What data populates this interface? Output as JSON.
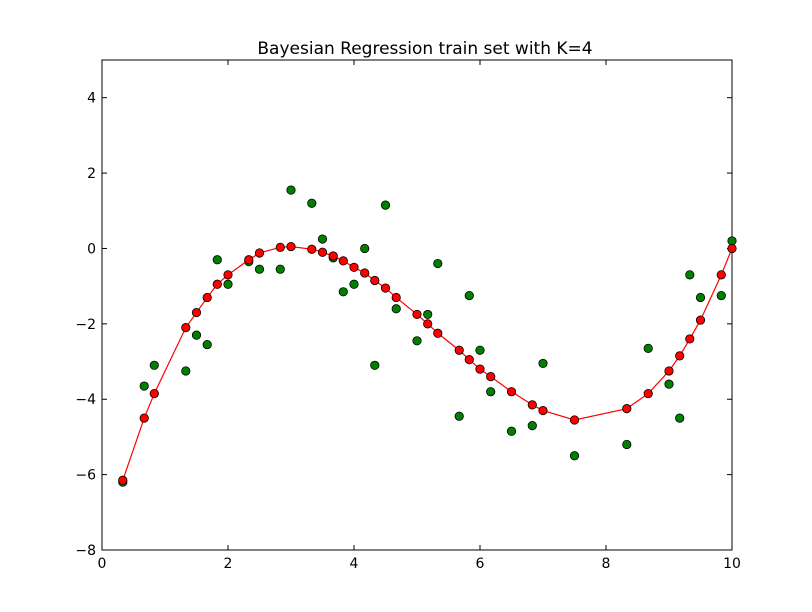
{
  "chart_data": {
    "type": "scatter",
    "title": "Bayesian Regression train set with K=4",
    "xlabel": "",
    "ylabel": "",
    "xlim": [
      0,
      10
    ],
    "ylim": [
      -8,
      5
    ],
    "x_ticks": [
      "0",
      "2",
      "4",
      "6",
      "8",
      "10"
    ],
    "y_ticks": [
      "−8",
      "−6",
      "−4",
      "−2",
      "0",
      "2",
      "4"
    ],
    "grid": false,
    "legend": "none",
    "series": [
      {
        "kind": "points",
        "color": "#008000",
        "points": [
          [
            0.33,
            -6.2
          ],
          [
            0.67,
            -3.65
          ],
          [
            0.83,
            -3.1
          ],
          [
            1.33,
            -3.25
          ],
          [
            1.5,
            -2.3
          ],
          [
            1.67,
            -2.55
          ],
          [
            1.83,
            -0.3
          ],
          [
            2.0,
            -0.95
          ],
          [
            2.33,
            -0.35
          ],
          [
            2.5,
            -0.55
          ],
          [
            2.83,
            -0.55
          ],
          [
            3.0,
            1.55
          ],
          [
            3.33,
            1.2
          ],
          [
            3.5,
            0.25
          ],
          [
            3.67,
            -0.25
          ],
          [
            3.83,
            -1.15
          ],
          [
            4.0,
            -0.95
          ],
          [
            4.17,
            0.0
          ],
          [
            4.33,
            -3.1
          ],
          [
            4.5,
            1.15
          ],
          [
            4.67,
            -1.6
          ],
          [
            5.0,
            -2.45
          ],
          [
            5.17,
            -1.75
          ],
          [
            5.33,
            -0.4
          ],
          [
            5.67,
            -4.45
          ],
          [
            5.83,
            -1.25
          ],
          [
            6.0,
            -2.7
          ],
          [
            6.17,
            -3.8
          ],
          [
            6.5,
            -4.85
          ],
          [
            6.83,
            -4.7
          ],
          [
            7.0,
            -3.05
          ],
          [
            7.5,
            -5.5
          ],
          [
            8.33,
            -5.2
          ],
          [
            8.67,
            -2.65
          ],
          [
            9.0,
            -3.6
          ],
          [
            9.17,
            -4.5
          ],
          [
            9.33,
            -0.7
          ],
          [
            9.5,
            -1.3
          ],
          [
            9.83,
            -1.25
          ],
          [
            10.0,
            0.2
          ]
        ]
      },
      {
        "kind": "line-with-points",
        "color": "#ff0000",
        "points": [
          [
            0.33,
            -6.15
          ],
          [
            0.67,
            -4.5
          ],
          [
            0.83,
            -3.85
          ],
          [
            1.33,
            -2.1
          ],
          [
            1.5,
            -1.7
          ],
          [
            1.67,
            -1.3
          ],
          [
            1.83,
            -0.95
          ],
          [
            2.0,
            -0.7
          ],
          [
            2.33,
            -0.3
          ],
          [
            2.5,
            -0.12
          ],
          [
            2.83,
            0.03
          ],
          [
            3.0,
            0.05
          ],
          [
            3.33,
            -0.02
          ],
          [
            3.5,
            -0.1
          ],
          [
            3.67,
            -0.2
          ],
          [
            3.83,
            -0.33
          ],
          [
            4.0,
            -0.5
          ],
          [
            4.17,
            -0.65
          ],
          [
            4.33,
            -0.85
          ],
          [
            4.5,
            -1.05
          ],
          [
            4.67,
            -1.3
          ],
          [
            5.0,
            -1.75
          ],
          [
            5.17,
            -2.0
          ],
          [
            5.33,
            -2.25
          ],
          [
            5.67,
            -2.7
          ],
          [
            5.83,
            -2.95
          ],
          [
            6.0,
            -3.2
          ],
          [
            6.17,
            -3.4
          ],
          [
            6.5,
            -3.8
          ],
          [
            6.83,
            -4.15
          ],
          [
            7.0,
            -4.3
          ],
          [
            7.5,
            -4.55
          ],
          [
            8.33,
            -4.25
          ],
          [
            8.67,
            -3.85
          ],
          [
            9.0,
            -3.25
          ],
          [
            9.17,
            -2.85
          ],
          [
            9.33,
            -2.4
          ],
          [
            9.5,
            -1.9
          ],
          [
            9.83,
            -0.7
          ],
          [
            10.0,
            0.0
          ]
        ]
      }
    ]
  }
}
